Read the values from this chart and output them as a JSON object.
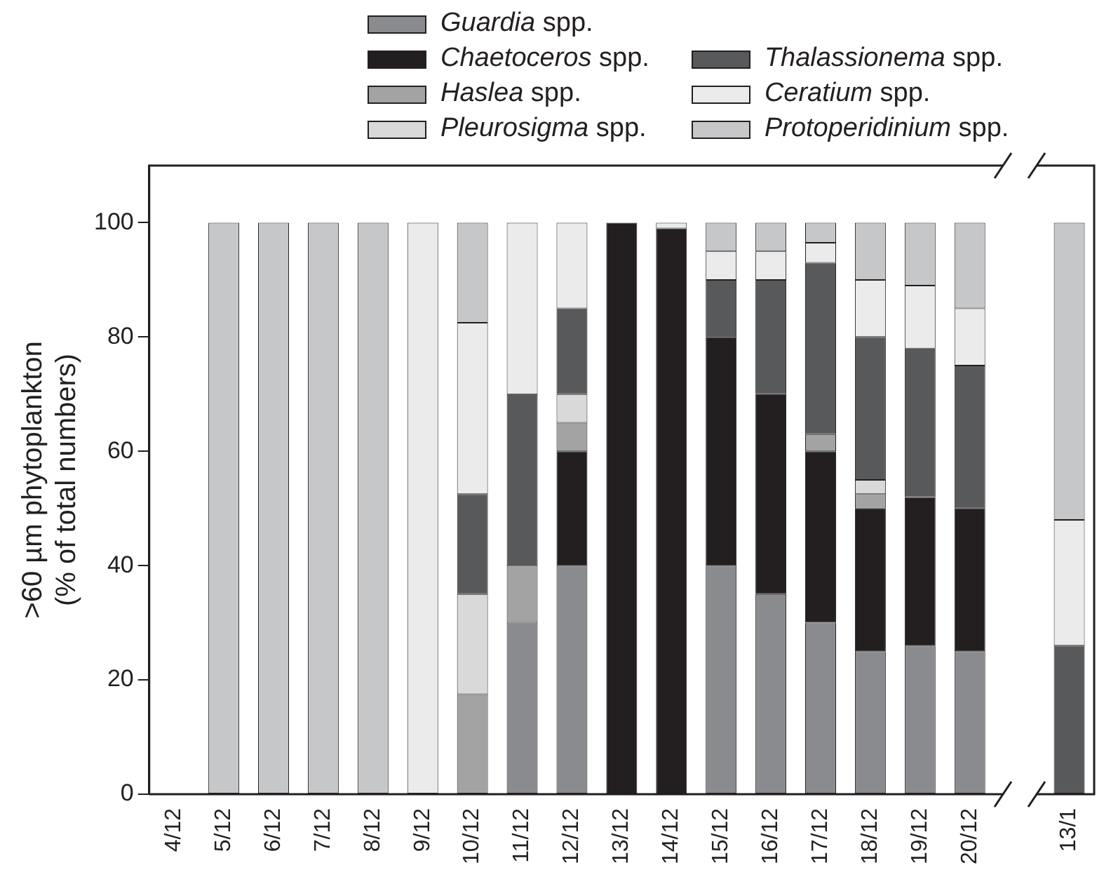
{
  "chart_data": {
    "type": "bar",
    "stacked": true,
    "ylabel": ">60 µm phytoplankton\n(% of total numbers)",
    "categories": [
      "4/12",
      "5/12",
      "6/12",
      "7/12",
      "8/12",
      "9/12",
      "10/12",
      "11/12",
      "12/12",
      "13/12",
      "14/12",
      "15/12",
      "16/12",
      "17/12",
      "18/12",
      "19/12",
      "20/12",
      null,
      "13/1"
    ],
    "series": [
      {
        "name": "Guardia spp.",
        "color": "#8a8b8f",
        "values": [
          null,
          0,
          0,
          0,
          0,
          0,
          0,
          30,
          40,
          0,
          0,
          40,
          35,
          30,
          25,
          26,
          25,
          null,
          0
        ]
      },
      {
        "name": "Chaetoceros spp.",
        "color": "#231f20",
        "values": [
          null,
          0,
          0,
          0,
          0,
          0,
          0,
          0,
          20,
          100,
          99,
          40,
          35,
          30,
          25,
          26,
          25,
          null,
          0
        ]
      },
      {
        "name": "Haslea spp.",
        "color": "#a3a3a3",
        "values": [
          null,
          0,
          0,
          0,
          0,
          0,
          17.5,
          10,
          5,
          0,
          0,
          0,
          0,
          3,
          2.5,
          0,
          0,
          null,
          0
        ]
      },
      {
        "name": "Pleurosigma spp.",
        "color": "#d9d9d9",
        "values": [
          null,
          0,
          0,
          0,
          0,
          0,
          17.5,
          0,
          5,
          0,
          0,
          0,
          0,
          0,
          2.5,
          0,
          0,
          null,
          0
        ]
      },
      {
        "name": "Thalassionema spp.",
        "color": "#58595b",
        "values": [
          null,
          0,
          0,
          0,
          0,
          0,
          17.5,
          30,
          15,
          0,
          0,
          10,
          20,
          30,
          25,
          26,
          25,
          null,
          26
        ]
      },
      {
        "name": "Ceratium spp.",
        "color": "#ebebeb",
        "values": [
          null,
          0,
          0,
          0,
          0,
          100,
          30,
          30,
          15,
          0,
          1,
          5,
          5,
          3.5,
          10,
          11,
          10,
          null,
          22
        ]
      },
      {
        "name": "Protoperidinium spp.",
        "color": "#c6c7c9",
        "values": [
          null,
          100,
          100,
          100,
          100,
          0,
          17.5,
          0,
          0,
          0,
          0,
          5,
          5,
          3.5,
          10,
          11,
          15,
          null,
          52
        ]
      }
    ],
    "ylim": [
      0,
      110
    ],
    "yticks": [
      0,
      20,
      40,
      60,
      80,
      100
    ],
    "grid": false,
    "legend": "top"
  }
}
